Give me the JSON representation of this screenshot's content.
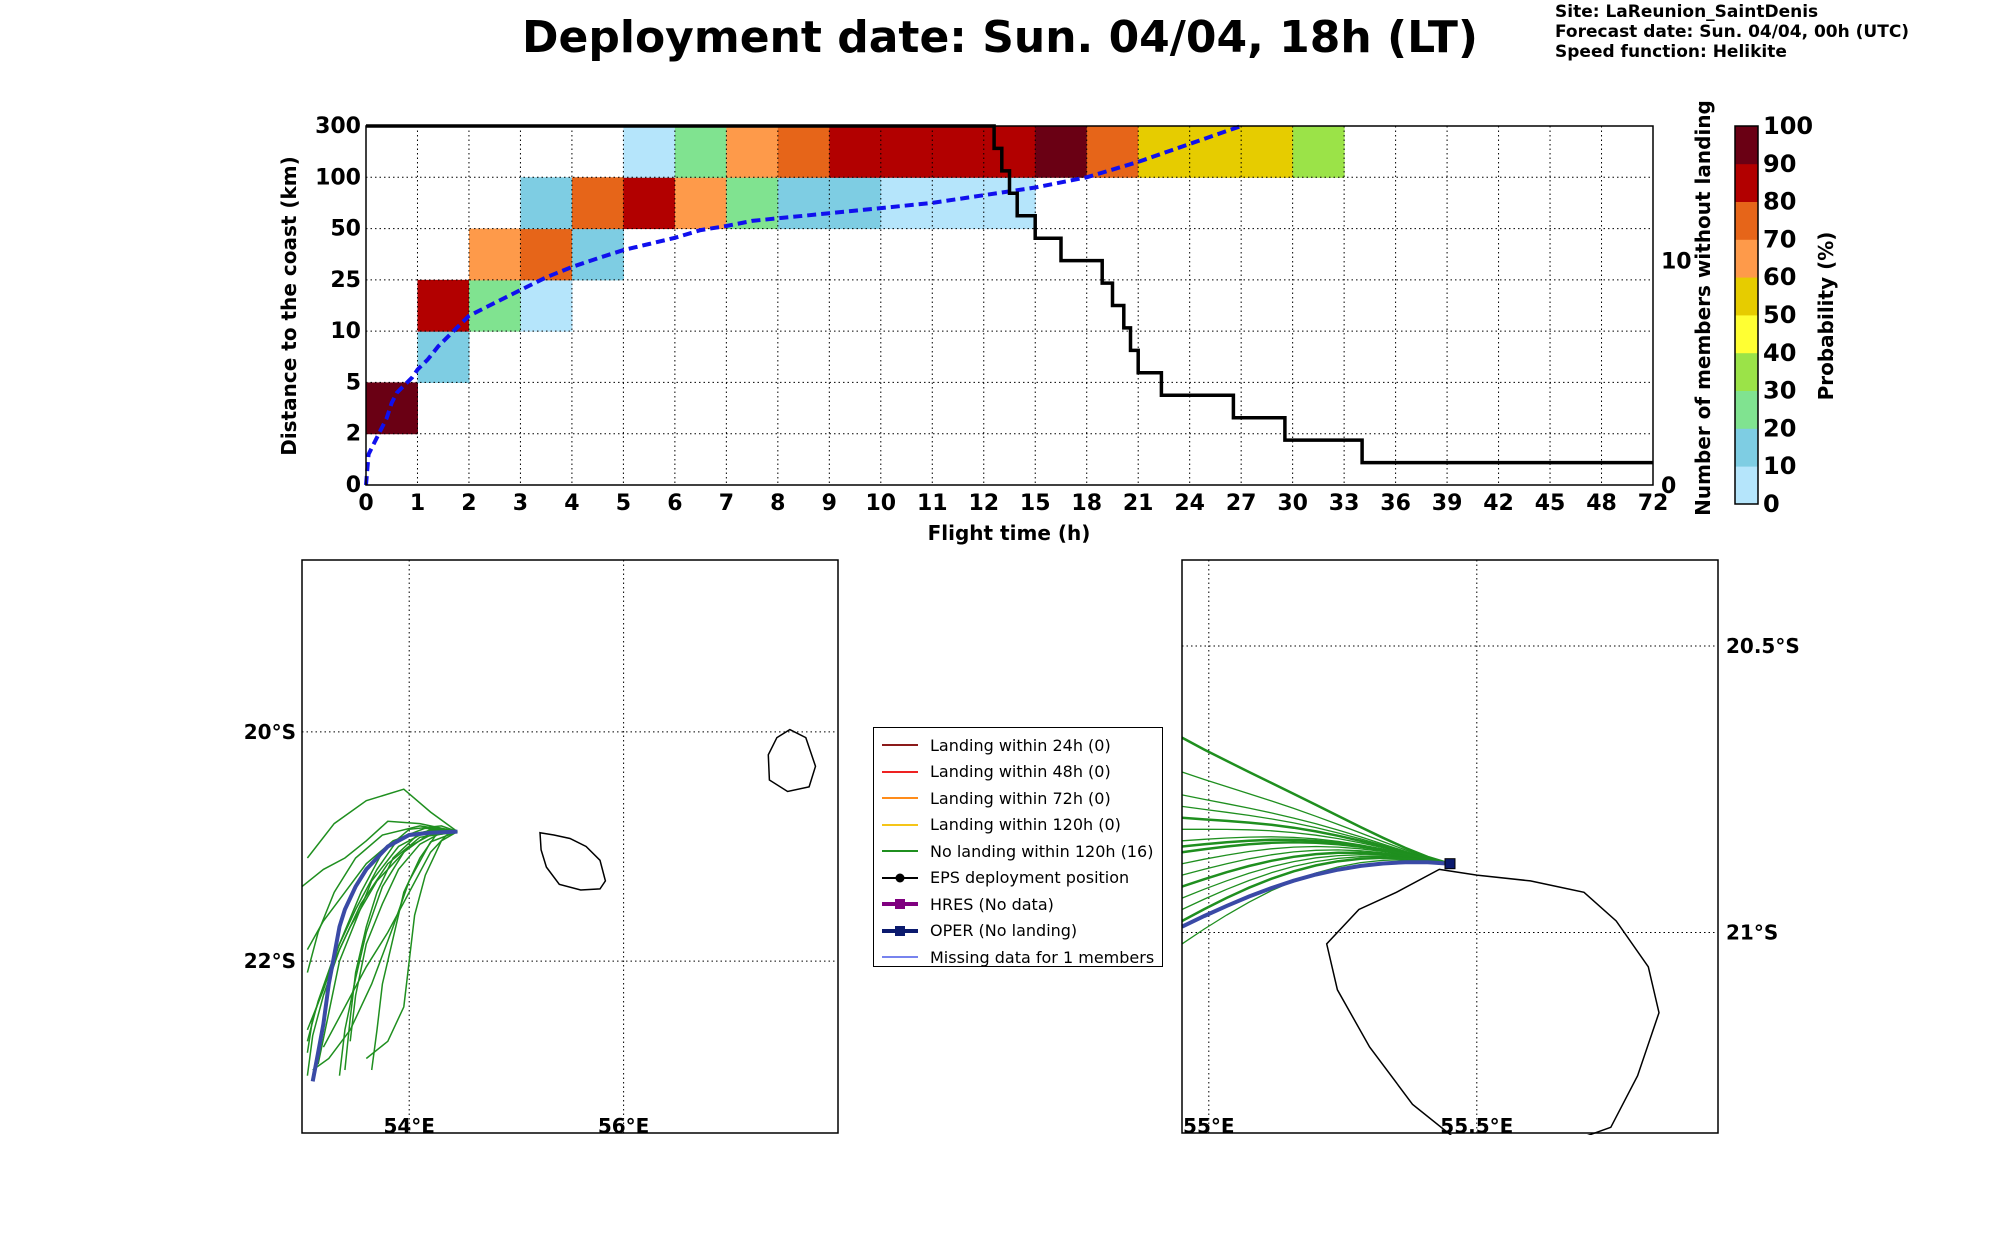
{
  "title": "Deployment date: Sun. 04/04, 18h (LT)",
  "meta": {
    "site": "Site: LaReunion_SaintDenis",
    "forecast": "Forecast date: Sun. 04/04, 00h (UTC)",
    "speed": "Speed function: Helikite"
  },
  "colors": {
    "bins": [
      "#b5e5fb",
      "#7ecde3",
      "#80e390",
      "#9be348",
      "#ffff33",
      "#e6cc00",
      "#fe9a4a",
      "#e66519",
      "#b20000",
      "#6a0014"
    ],
    "dashed": "#1010ee",
    "step": "#000000",
    "track_green": "#1f8f1f",
    "track_oper": "#3a4aa6"
  },
  "chart_data": [
    {
      "type": "heatmap",
      "xlabel": "Flight time (h)",
      "ylabel": "Distance to the coast (km)",
      "y2label": "Number of members without landing",
      "colorbar_label": "Probability (%)",
      "x_ticks": [
        "0",
        "1",
        "2",
        "3",
        "4",
        "5",
        "6",
        "7",
        "8",
        "9",
        "10",
        "11",
        "12",
        "15",
        "18",
        "21",
        "24",
        "27",
        "30",
        "33",
        "36",
        "39",
        "42",
        "45",
        "48",
        "72"
      ],
      "y_ticks": [
        "0",
        "2",
        "5",
        "10",
        "25",
        "50",
        "100",
        "300"
      ],
      "y2_ticks": [
        "0",
        "10"
      ],
      "colorbar_ticks": [
        "0",
        "10",
        "20",
        "30",
        "40",
        "50",
        "60",
        "70",
        "80",
        "90",
        "100"
      ],
      "grid": true,
      "cells": [
        {
          "x": 0,
          "y": 1,
          "p": 95
        },
        {
          "x": 1,
          "y": 2,
          "p": 15
        },
        {
          "x": 1,
          "y": 3,
          "p": 85
        },
        {
          "x": 2,
          "y": 3,
          "p": 25
        },
        {
          "x": 2,
          "y": 4,
          "p": 65
        },
        {
          "x": 3,
          "y": 3,
          "p": 5
        },
        {
          "x": 3,
          "y": 4,
          "p": 75
        },
        {
          "x": 3,
          "y": 5,
          "p": 15
        },
        {
          "x": 4,
          "y": 4,
          "p": 15
        },
        {
          "x": 4,
          "y": 5,
          "p": 75
        },
        {
          "x": 5,
          "y": 5,
          "p": 85
        },
        {
          "x": 5,
          "y": 6,
          "p": 5
        },
        {
          "x": 6,
          "y": 5,
          "p": 65
        },
        {
          "x": 6,
          "y": 6,
          "p": 25
        },
        {
          "x": 7,
          "y": 5,
          "p": 25
        },
        {
          "x": 7,
          "y": 6,
          "p": 65
        },
        {
          "x": 8,
          "y": 5,
          "p": 15
        },
        {
          "x": 8,
          "y": 6,
          "p": 75
        },
        {
          "x": 9,
          "y": 5,
          "p": 15
        },
        {
          "x": 9,
          "y": 6,
          "p": 85
        },
        {
          "x": 10,
          "y": 5,
          "p": 5
        },
        {
          "x": 10,
          "y": 6,
          "p": 85
        },
        {
          "x": 11,
          "y": 5,
          "p": 5
        },
        {
          "x": 11,
          "y": 6,
          "p": 85
        },
        {
          "x": 12,
          "y": 5,
          "p": 5
        },
        {
          "x": 12,
          "y": 6,
          "p": 85
        },
        {
          "x": 13,
          "y": 6,
          "p": 95
        },
        {
          "x": 14,
          "y": 6,
          "p": 75
        },
        {
          "x": 15,
          "y": 6,
          "p": 55
        },
        {
          "x": 16,
          "y": 6,
          "p": 55
        },
        {
          "x": 17,
          "y": 6,
          "p": 55
        },
        {
          "x": 18,
          "y": 6,
          "p": 35
        }
      ],
      "median_distance": {
        "name": "",
        "points": [
          [
            0,
            0
          ],
          [
            0.05,
            0.6
          ],
          [
            0.2,
            0.9
          ],
          [
            0.4,
            1.3
          ],
          [
            0.5,
            1.6
          ],
          [
            0.6,
            1.8
          ],
          [
            0.75,
            1.95
          ],
          [
            0.9,
            2.1
          ],
          [
            1.0,
            2.25
          ],
          [
            1.2,
            2.45
          ],
          [
            1.4,
            2.7
          ],
          [
            1.7,
            3.0
          ],
          [
            2.0,
            3.3
          ],
          [
            2.5,
            3.55
          ],
          [
            3.0,
            3.8
          ],
          [
            3.5,
            4.05
          ],
          [
            4.0,
            4.25
          ],
          [
            4.5,
            4.42
          ],
          [
            5.0,
            4.58
          ],
          [
            5.5,
            4.7
          ],
          [
            6.0,
            4.82
          ],
          [
            6.5,
            4.97
          ],
          [
            7.0,
            5.05
          ],
          [
            7.5,
            5.15
          ],
          [
            8.0,
            5.2
          ],
          [
            8.5,
            5.25
          ],
          [
            9.0,
            5.3
          ],
          [
            10.0,
            5.4
          ],
          [
            11.0,
            5.5
          ],
          [
            12.0,
            5.65
          ],
          [
            13.0,
            5.8
          ],
          [
            14.0,
            6.0
          ],
          [
            15.0,
            6.3
          ],
          [
            16.0,
            6.65
          ],
          [
            17.0,
            7.0
          ]
        ]
      },
      "members_without_landing": {
        "name": "",
        "ylim": [
          0,
          16
        ],
        "steps": [
          [
            0,
            16
          ],
          [
            12.2,
            16
          ],
          [
            12.2,
            15
          ],
          [
            12.35,
            15
          ],
          [
            12.35,
            14
          ],
          [
            12.5,
            14
          ],
          [
            12.5,
            13
          ],
          [
            12.65,
            13
          ],
          [
            12.65,
            12
          ],
          [
            13.0,
            12
          ],
          [
            13.0,
            11
          ],
          [
            13.5,
            11
          ],
          [
            13.5,
            10
          ],
          [
            14.3,
            10
          ],
          [
            14.3,
            9
          ],
          [
            14.5,
            9
          ],
          [
            14.5,
            8
          ],
          [
            14.72,
            8
          ],
          [
            14.72,
            7
          ],
          [
            14.85,
            7
          ],
          [
            14.85,
            6
          ],
          [
            15.0,
            6
          ],
          [
            15.0,
            5
          ],
          [
            15.45,
            5
          ],
          [
            15.45,
            4
          ],
          [
            16.85,
            4
          ],
          [
            16.85,
            3
          ],
          [
            17.85,
            3
          ],
          [
            17.85,
            2
          ],
          [
            19.35,
            2
          ],
          [
            19.35,
            1
          ],
          [
            25,
            1
          ]
        ]
      }
    },
    {
      "type": "map",
      "x_ticks": [
        "54°E",
        "56°E"
      ],
      "y_ticks": [
        "20°S",
        "22°S"
      ],
      "xlim": [
        53.0,
        58.0
      ],
      "ylim": [
        -23.5,
        -18.5
      ],
      "release": [
        54.45,
        -20.85
      ],
      "tracks": {
        "oper": [
          [
            54.45,
            -20.87
          ],
          [
            54.2,
            -20.88
          ],
          [
            54.0,
            -20.9
          ],
          [
            53.8,
            -21.0
          ],
          [
            53.6,
            -21.2
          ],
          [
            53.5,
            -21.35
          ],
          [
            53.4,
            -21.55
          ],
          [
            53.35,
            -21.7
          ],
          [
            53.3,
            -21.95
          ],
          [
            53.25,
            -22.2
          ],
          [
            53.2,
            -22.55
          ],
          [
            53.15,
            -22.8
          ],
          [
            53.1,
            -23.05
          ]
        ],
        "members": [
          [
            [
              54.45,
              -20.87
            ],
            [
              54.2,
              -20.86
            ],
            [
              54.0,
              -20.9
            ],
            [
              53.85,
              -20.95
            ],
            [
              53.6,
              -21.15
            ],
            [
              53.4,
              -21.4
            ],
            [
              53.2,
              -21.65
            ],
            [
              53.05,
              -21.9
            ]
          ],
          [
            [
              54.45,
              -20.87
            ],
            [
              54.1,
              -20.8
            ],
            [
              53.8,
              -20.78
            ],
            [
              53.6,
              -20.95
            ],
            [
              53.4,
              -21.1
            ],
            [
              53.2,
              -21.2
            ],
            [
              53.0,
              -21.35
            ]
          ],
          [
            [
              54.45,
              -20.87
            ],
            [
              54.2,
              -20.7
            ],
            [
              53.95,
              -20.5
            ],
            [
              53.6,
              -20.6
            ],
            [
              53.3,
              -20.8
            ],
            [
              53.05,
              -21.1
            ]
          ],
          [
            [
              54.45,
              -20.87
            ],
            [
              54.2,
              -20.9
            ],
            [
              54.0,
              -21.0
            ],
            [
              53.7,
              -21.3
            ],
            [
              53.45,
              -21.7
            ],
            [
              53.25,
              -22.1
            ],
            [
              53.1,
              -22.5
            ],
            [
              53.05,
              -22.8
            ]
          ],
          [
            [
              54.45,
              -20.87
            ],
            [
              54.1,
              -20.92
            ],
            [
              53.8,
              -21.15
            ],
            [
              53.55,
              -21.5
            ],
            [
              53.35,
              -21.9
            ],
            [
              53.2,
              -22.3
            ],
            [
              53.1,
              -22.65
            ],
            [
              53.05,
              -23.0
            ]
          ],
          [
            [
              54.45,
              -20.87
            ],
            [
              54.2,
              -20.85
            ],
            [
              53.9,
              -21.0
            ],
            [
              53.65,
              -21.3
            ],
            [
              53.5,
              -21.65
            ],
            [
              53.35,
              -22.0
            ],
            [
              53.25,
              -22.45
            ],
            [
              53.15,
              -22.9
            ]
          ],
          [
            [
              54.45,
              -20.87
            ],
            [
              54.1,
              -20.88
            ],
            [
              53.85,
              -21.1
            ],
            [
              53.7,
              -21.4
            ],
            [
              53.6,
              -21.7
            ],
            [
              53.5,
              -22.1
            ],
            [
              53.45,
              -22.5
            ],
            [
              53.4,
              -22.95
            ]
          ],
          [
            [
              54.45,
              -20.87
            ],
            [
              54.25,
              -20.9
            ],
            [
              54.1,
              -21.1
            ],
            [
              53.95,
              -21.4
            ],
            [
              53.85,
              -21.8
            ],
            [
              53.75,
              -22.2
            ],
            [
              53.7,
              -22.6
            ],
            [
              53.65,
              -22.95
            ]
          ],
          [
            [
              54.45,
              -20.87
            ],
            [
              54.3,
              -20.95
            ],
            [
              54.15,
              -21.25
            ],
            [
              54.05,
              -21.6
            ],
            [
              54.0,
              -22.0
            ],
            [
              53.95,
              -22.4
            ],
            [
              53.8,
              -22.7
            ],
            [
              53.6,
              -22.85
            ]
          ],
          [
            [
              54.45,
              -20.87
            ],
            [
              54.2,
              -20.96
            ],
            [
              54.0,
              -21.3
            ],
            [
              53.85,
              -21.7
            ],
            [
              53.65,
              -22.2
            ],
            [
              53.45,
              -22.6
            ],
            [
              53.25,
              -22.85
            ],
            [
              53.1,
              -22.95
            ]
          ],
          [
            [
              54.45,
              -20.87
            ],
            [
              54.3,
              -20.82
            ],
            [
              54.0,
              -20.85
            ],
            [
              53.75,
              -21.05
            ],
            [
              53.55,
              -21.4
            ],
            [
              53.35,
              -21.85
            ],
            [
              53.2,
              -22.25
            ],
            [
              53.05,
              -22.6
            ]
          ],
          [
            [
              54.45,
              -20.87
            ],
            [
              54.15,
              -20.84
            ],
            [
              53.9,
              -20.93
            ],
            [
              53.7,
              -21.2
            ],
            [
              53.5,
              -21.55
            ],
            [
              53.3,
              -21.95
            ],
            [
              53.15,
              -22.35
            ],
            [
              53.05,
              -22.7
            ]
          ],
          [
            [
              54.45,
              -20.87
            ],
            [
              54.35,
              -20.9
            ],
            [
              54.2,
              -21.05
            ],
            [
              54.0,
              -21.4
            ],
            [
              53.8,
              -21.75
            ],
            [
              53.6,
              -22.05
            ],
            [
              53.4,
              -22.4
            ],
            [
              53.2,
              -22.75
            ]
          ],
          [
            [
              54.45,
              -20.87
            ],
            [
              54.1,
              -20.82
            ],
            [
              53.75,
              -20.9
            ],
            [
              53.5,
              -21.1
            ],
            [
              53.3,
              -21.4
            ],
            [
              53.15,
              -21.75
            ],
            [
              53.05,
              -22.1
            ]
          ],
          [
            [
              54.45,
              -20.87
            ],
            [
              54.3,
              -20.88
            ],
            [
              54.1,
              -20.98
            ],
            [
              53.9,
              -21.2
            ],
            [
              53.75,
              -21.5
            ],
            [
              53.6,
              -21.85
            ],
            [
              53.5,
              -22.3
            ],
            [
              53.45,
              -22.7
            ]
          ],
          [
            [
              54.45,
              -20.87
            ],
            [
              54.2,
              -20.88
            ],
            [
              53.95,
              -21.05
            ],
            [
              53.75,
              -21.35
            ],
            [
              53.6,
              -21.75
            ],
            [
              53.5,
              -22.15
            ],
            [
              53.4,
              -22.6
            ],
            [
              53.35,
              -23.0
            ]
          ]
        ]
      }
    },
    {
      "type": "map",
      "x_ticks": [
        "55°E",
        "55.5°E"
      ],
      "y_ticks": [
        "20.5°S",
        "21°S"
      ],
      "xlim": [
        54.95,
        55.95
      ],
      "ylim": [
        -21.35,
        -20.35
      ],
      "release": [
        55.45,
        -20.88
      ]
    }
  ],
  "legend": {
    "items": [
      {
        "label": "Landing within 24h (0)",
        "color": "#8b1a1a",
        "marker": "none",
        "lw": 2
      },
      {
        "label": "Landing within 48h (0)",
        "color": "#ee2222",
        "marker": "none",
        "lw": 2
      },
      {
        "label": "Landing within 72h (0)",
        "color": "#ff8c1a",
        "marker": "none",
        "lw": 2
      },
      {
        "label": "Landing within 120h (0)",
        "color": "#f5c518",
        "marker": "none",
        "lw": 2
      },
      {
        "label": "No landing within 120h (16)",
        "color": "#1f8f1f",
        "marker": "none",
        "lw": 2
      },
      {
        "label": "EPS deployment position",
        "color": "#000000",
        "marker": "circle",
        "lw": 2
      },
      {
        "label": "HRES (No data)",
        "color": "#800080",
        "marker": "square",
        "lw": 4
      },
      {
        "label": "OPER (No landing)",
        "color": "#0b1a6e",
        "marker": "square",
        "lw": 4
      },
      {
        "label": "Missing data for 1 members",
        "color": "#4a5ae8",
        "marker": "none",
        "lw": 1.5
      }
    ]
  }
}
